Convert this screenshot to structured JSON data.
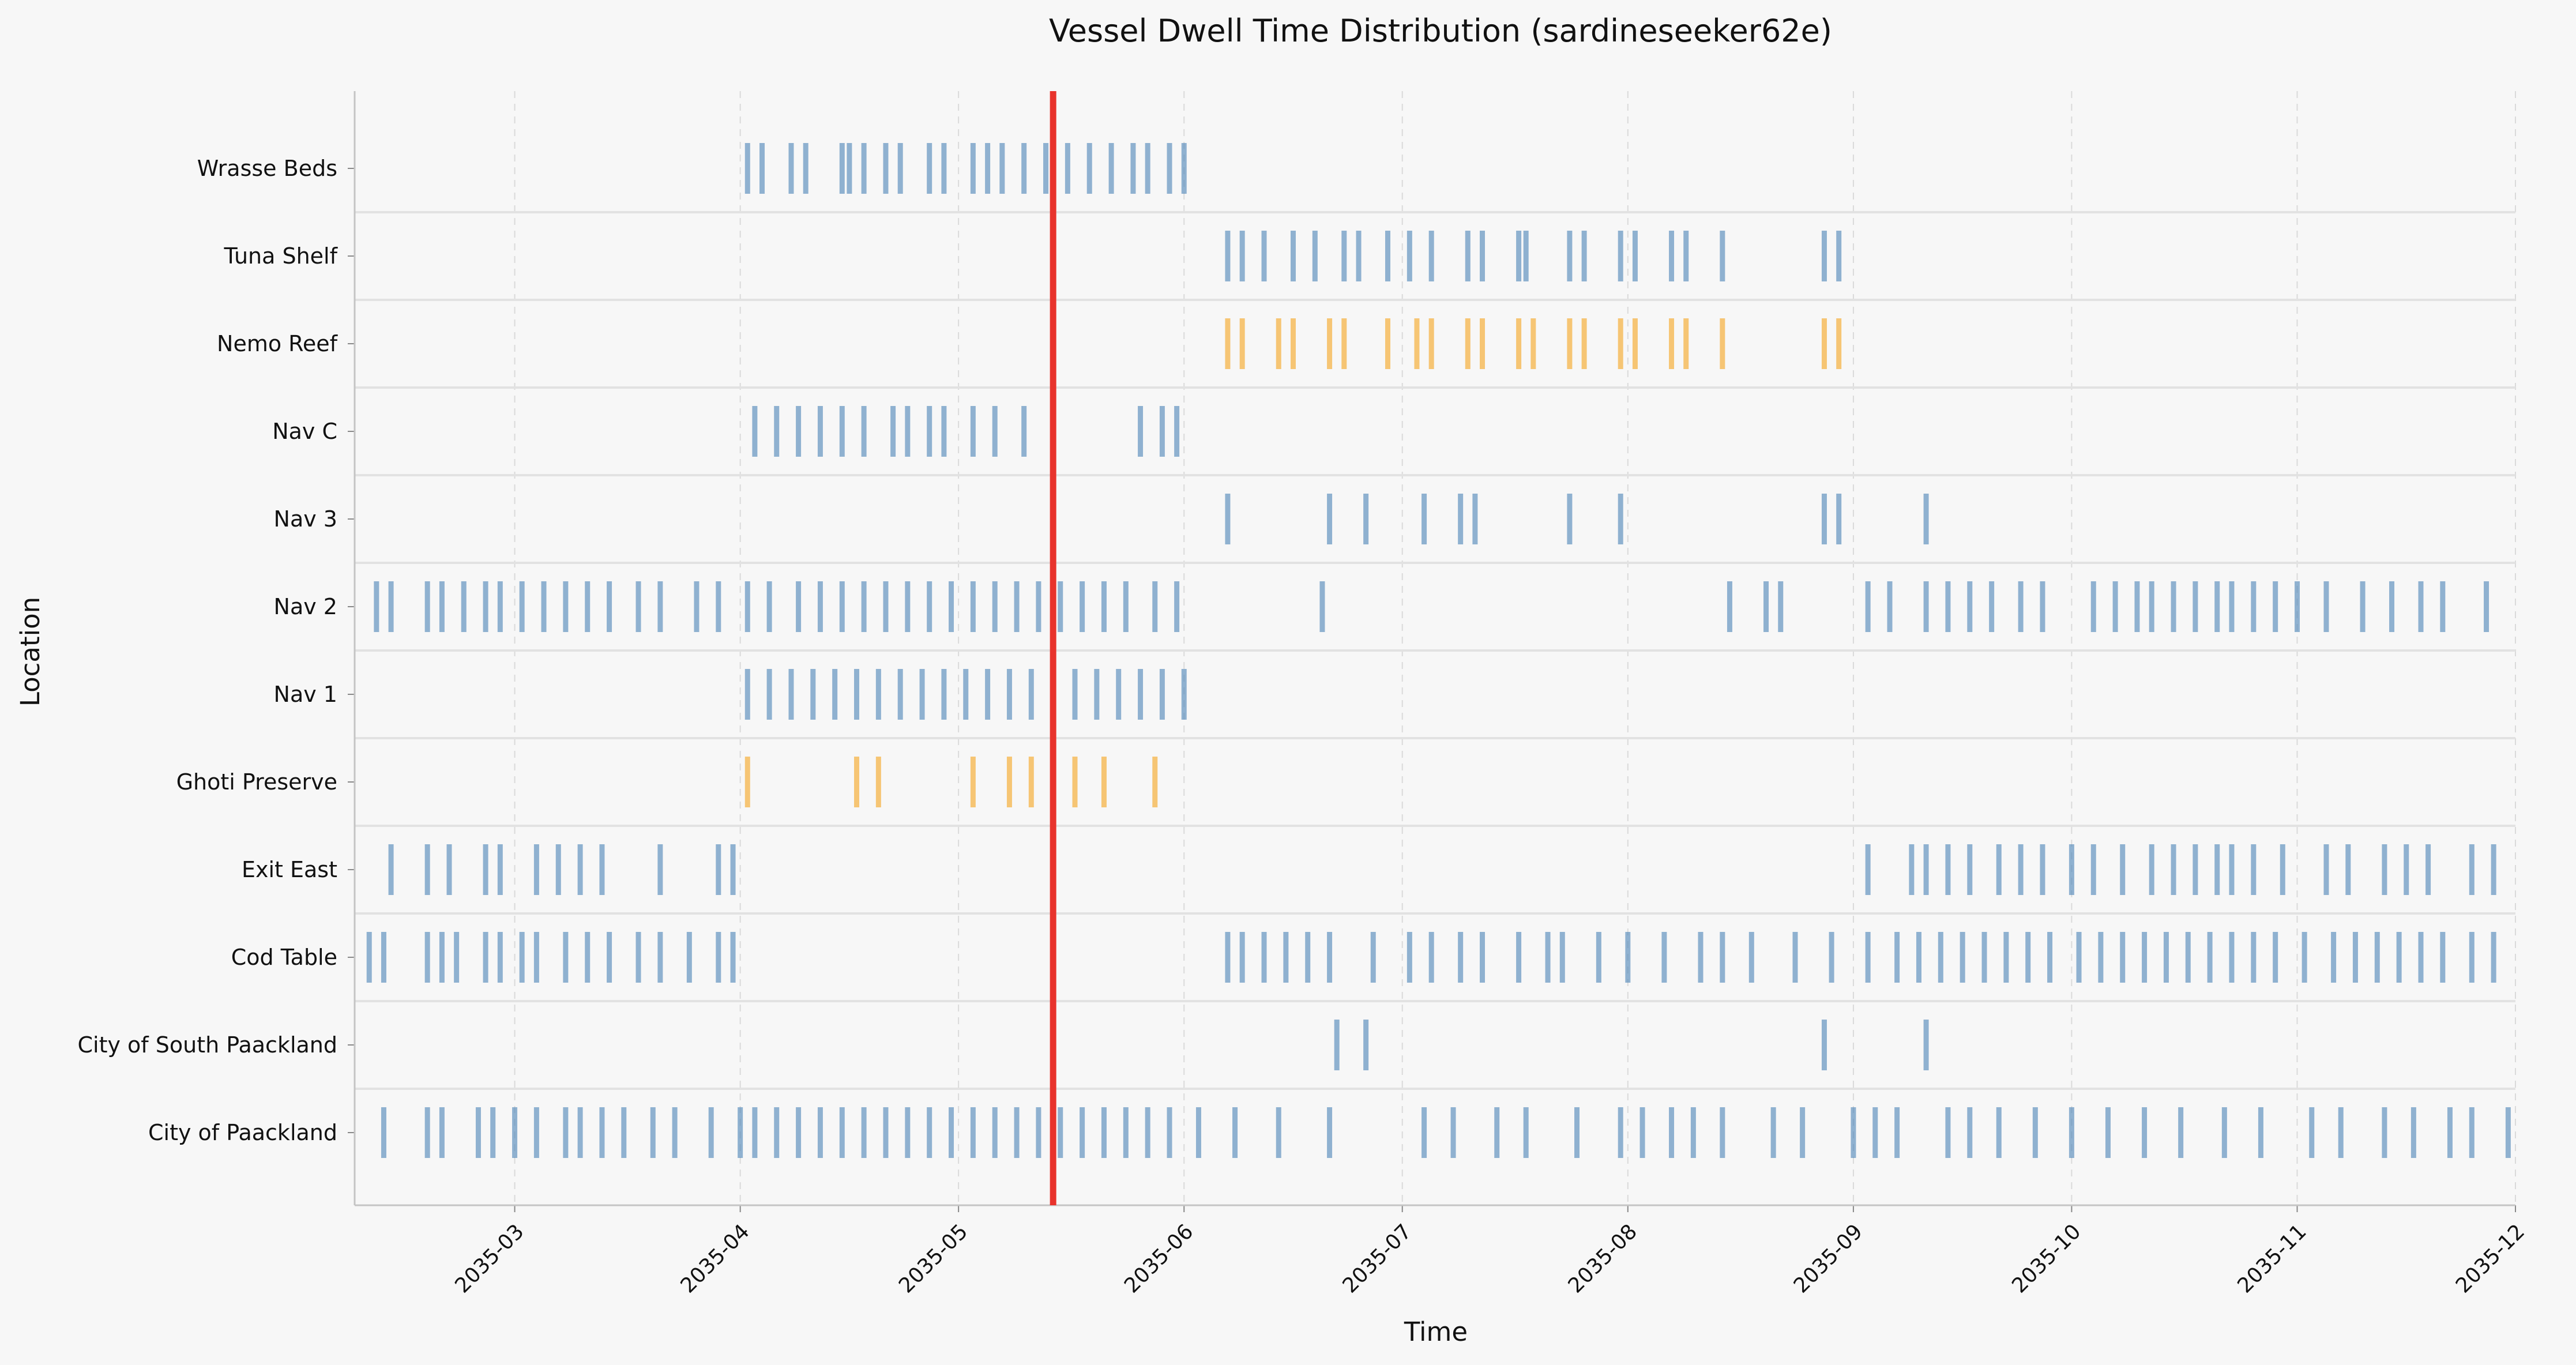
{
  "chart_data": {
    "type": "timeline",
    "title": "Vessel Dwell Time Distribution (sardineseeker62e)",
    "xlabel": "Time",
    "ylabel": "Location",
    "grid": true,
    "xlim": [
      "2035-02-07",
      "2035-12-01"
    ],
    "x_ticks": [
      "2035-03",
      "2035-04",
      "2035-05",
      "2035-06",
      "2035-07",
      "2035-08",
      "2035-09",
      "2035-10",
      "2035-11",
      "2035-12"
    ],
    "marker_date": "2035-05-14",
    "colors": {
      "default": "#4f86b8",
      "highlight": "#f5a623",
      "marker": "#e8332c"
    },
    "locations": [
      {
        "name": "Wrasse Beds",
        "color": "default",
        "events": [
          "2035-04-02",
          "2035-04-04",
          "2035-04-08",
          "2035-04-10",
          "2035-04-15",
          "2035-04-16",
          "2035-04-18",
          "2035-04-21",
          "2035-04-23",
          "2035-04-27",
          "2035-04-29",
          "2035-05-03",
          "2035-05-05",
          "2035-05-07",
          "2035-05-10",
          "2035-05-13",
          "2035-05-16",
          "2035-05-19",
          "2035-05-22",
          "2035-05-25",
          "2035-05-27",
          "2035-05-30",
          "2035-06-01"
        ]
      },
      {
        "name": "Tuna Shelf",
        "color": "default",
        "events": [
          "2035-06-07",
          "2035-06-09",
          "2035-06-12",
          "2035-06-16",
          "2035-06-19",
          "2035-06-23",
          "2035-06-25",
          "2035-06-29",
          "2035-07-02",
          "2035-07-05",
          "2035-07-10",
          "2035-07-12",
          "2035-07-17",
          "2035-07-18",
          "2035-07-24",
          "2035-07-26",
          "2035-07-31",
          "2035-08-02",
          "2035-08-07",
          "2035-08-09",
          "2035-08-14",
          "2035-08-28",
          "2035-08-30"
        ]
      },
      {
        "name": "Nemo Reef",
        "color": "highlight",
        "events": [
          "2035-06-07",
          "2035-06-09",
          "2035-06-14",
          "2035-06-16",
          "2035-06-21",
          "2035-06-23",
          "2035-06-29",
          "2035-07-03",
          "2035-07-05",
          "2035-07-10",
          "2035-07-12",
          "2035-07-17",
          "2035-07-19",
          "2035-07-24",
          "2035-07-26",
          "2035-07-31",
          "2035-08-02",
          "2035-08-07",
          "2035-08-09",
          "2035-08-14",
          "2035-08-28",
          "2035-08-30"
        ]
      },
      {
        "name": "Nav C",
        "color": "default",
        "events": [
          "2035-04-03",
          "2035-04-06",
          "2035-04-09",
          "2035-04-12",
          "2035-04-15",
          "2035-04-18",
          "2035-04-22",
          "2035-04-24",
          "2035-04-27",
          "2035-04-29",
          "2035-05-03",
          "2035-05-06",
          "2035-05-10",
          "2035-05-14",
          "2035-05-26",
          "2035-05-29",
          "2035-05-31"
        ]
      },
      {
        "name": "Nav 3",
        "color": "default",
        "events": [
          "2035-06-07",
          "2035-06-21",
          "2035-06-26",
          "2035-07-04",
          "2035-07-09",
          "2035-07-11",
          "2035-07-24",
          "2035-07-31",
          "2035-08-28",
          "2035-08-30",
          "2035-09-11"
        ]
      },
      {
        "name": "Nav 2",
        "color": "default",
        "events": [
          "2035-02-10",
          "2035-02-12",
          "2035-02-17",
          "2035-02-19",
          "2035-02-22",
          "2035-02-25",
          "2035-02-27",
          "2035-03-02",
          "2035-03-05",
          "2035-03-08",
          "2035-03-11",
          "2035-03-14",
          "2035-03-18",
          "2035-03-21",
          "2035-03-26",
          "2035-03-29",
          "2035-04-02",
          "2035-04-05",
          "2035-04-09",
          "2035-04-12",
          "2035-04-15",
          "2035-04-18",
          "2035-04-21",
          "2035-04-24",
          "2035-04-27",
          "2035-04-30",
          "2035-05-03",
          "2035-05-06",
          "2035-05-09",
          "2035-05-12",
          "2035-05-15",
          "2035-05-18",
          "2035-05-21",
          "2035-05-24",
          "2035-05-28",
          "2035-05-31",
          "2035-06-20",
          "2035-08-15",
          "2035-08-20",
          "2035-08-22",
          "2035-09-03",
          "2035-09-06",
          "2035-09-11",
          "2035-09-14",
          "2035-09-17",
          "2035-09-20",
          "2035-09-24",
          "2035-09-27",
          "2035-10-04",
          "2035-10-07",
          "2035-10-10",
          "2035-10-12",
          "2035-10-15",
          "2035-10-18",
          "2035-10-21",
          "2035-10-23",
          "2035-10-26",
          "2035-10-29",
          "2035-11-01",
          "2035-11-05",
          "2035-11-10",
          "2035-11-14",
          "2035-11-18",
          "2035-11-21",
          "2035-11-27"
        ]
      },
      {
        "name": "Nav 1",
        "color": "default",
        "events": [
          "2035-04-02",
          "2035-04-05",
          "2035-04-08",
          "2035-04-11",
          "2035-04-14",
          "2035-04-17",
          "2035-04-20",
          "2035-04-23",
          "2035-04-26",
          "2035-04-29",
          "2035-05-02",
          "2035-05-05",
          "2035-05-08",
          "2035-05-11",
          "2035-05-14",
          "2035-05-17",
          "2035-05-20",
          "2035-05-23",
          "2035-05-26",
          "2035-05-29",
          "2035-06-01"
        ]
      },
      {
        "name": "Ghoti Preserve",
        "color": "highlight",
        "events": [
          "2035-04-02",
          "2035-04-17",
          "2035-04-20",
          "2035-05-03",
          "2035-05-08",
          "2035-05-11",
          "2035-05-17",
          "2035-05-21",
          "2035-05-28"
        ]
      },
      {
        "name": "Exit East",
        "color": "default",
        "events": [
          "2035-02-12",
          "2035-02-17",
          "2035-02-20",
          "2035-02-25",
          "2035-02-27",
          "2035-03-04",
          "2035-03-07",
          "2035-03-10",
          "2035-03-13",
          "2035-03-21",
          "2035-03-29",
          "2035-03-31",
          "2035-09-03",
          "2035-09-09",
          "2035-09-11",
          "2035-09-14",
          "2035-09-17",
          "2035-09-21",
          "2035-09-24",
          "2035-09-27",
          "2035-10-01",
          "2035-10-04",
          "2035-10-08",
          "2035-10-12",
          "2035-10-15",
          "2035-10-18",
          "2035-10-21",
          "2035-10-23",
          "2035-10-26",
          "2035-10-30",
          "2035-11-05",
          "2035-11-08",
          "2035-11-13",
          "2035-11-16",
          "2035-11-19",
          "2035-11-25",
          "2035-11-28"
        ]
      },
      {
        "name": "Cod Table",
        "color": "default",
        "events": [
          "2035-02-09",
          "2035-02-11",
          "2035-02-17",
          "2035-02-19",
          "2035-02-21",
          "2035-02-25",
          "2035-02-27",
          "2035-03-02",
          "2035-03-04",
          "2035-03-08",
          "2035-03-11",
          "2035-03-14",
          "2035-03-18",
          "2035-03-21",
          "2035-03-25",
          "2035-03-29",
          "2035-03-31",
          "2035-06-07",
          "2035-06-09",
          "2035-06-12",
          "2035-06-15",
          "2035-06-18",
          "2035-06-21",
          "2035-06-27",
          "2035-07-02",
          "2035-07-05",
          "2035-07-09",
          "2035-07-12",
          "2035-07-17",
          "2035-07-21",
          "2035-07-23",
          "2035-07-28",
          "2035-08-01",
          "2035-08-06",
          "2035-08-11",
          "2035-08-14",
          "2035-08-18",
          "2035-08-24",
          "2035-08-29",
          "2035-09-03",
          "2035-09-07",
          "2035-09-10",
          "2035-09-13",
          "2035-09-16",
          "2035-09-19",
          "2035-09-22",
          "2035-09-25",
          "2035-09-28",
          "2035-10-02",
          "2035-10-05",
          "2035-10-08",
          "2035-10-11",
          "2035-10-14",
          "2035-10-17",
          "2035-10-20",
          "2035-10-23",
          "2035-10-26",
          "2035-10-29",
          "2035-11-02",
          "2035-11-06",
          "2035-11-09",
          "2035-11-12",
          "2035-11-15",
          "2035-11-18",
          "2035-11-21",
          "2035-11-25",
          "2035-11-28"
        ]
      },
      {
        "name": "City of South Paackland",
        "color": "default",
        "events": [
          "2035-06-22",
          "2035-06-26",
          "2035-08-28",
          "2035-09-11"
        ]
      },
      {
        "name": "City of Paackland",
        "color": "default",
        "events": [
          "2035-02-11",
          "2035-02-17",
          "2035-02-19",
          "2035-02-24",
          "2035-02-26",
          "2035-03-01",
          "2035-03-04",
          "2035-03-08",
          "2035-03-10",
          "2035-03-13",
          "2035-03-16",
          "2035-03-20",
          "2035-03-23",
          "2035-03-28",
          "2035-04-01",
          "2035-04-03",
          "2035-04-06",
          "2035-04-09",
          "2035-04-12",
          "2035-04-15",
          "2035-04-18",
          "2035-04-21",
          "2035-04-24",
          "2035-04-27",
          "2035-04-30",
          "2035-05-03",
          "2035-05-06",
          "2035-05-09",
          "2035-05-12",
          "2035-05-15",
          "2035-05-18",
          "2035-05-21",
          "2035-05-24",
          "2035-05-27",
          "2035-05-30",
          "2035-06-03",
          "2035-06-08",
          "2035-06-14",
          "2035-06-21",
          "2035-07-04",
          "2035-07-08",
          "2035-07-14",
          "2035-07-18",
          "2035-07-25",
          "2035-07-31",
          "2035-08-03",
          "2035-08-07",
          "2035-08-10",
          "2035-08-14",
          "2035-08-21",
          "2035-08-25",
          "2035-09-01",
          "2035-09-04",
          "2035-09-07",
          "2035-09-14",
          "2035-09-17",
          "2035-09-21",
          "2035-09-26",
          "2035-10-01",
          "2035-10-06",
          "2035-10-11",
          "2035-10-16",
          "2035-10-22",
          "2035-10-27",
          "2035-11-03",
          "2035-11-07",
          "2035-11-13",
          "2035-11-17",
          "2035-11-22",
          "2035-11-25",
          "2035-11-30"
        ]
      }
    ]
  }
}
